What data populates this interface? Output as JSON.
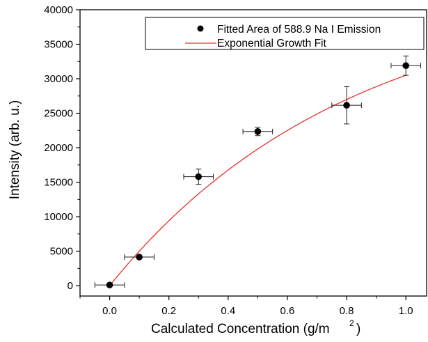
{
  "chart_data": {
    "type": "scatter",
    "title": "",
    "xlabel": "Calculated Concentration (g/m",
    "xlabel_sup": "2",
    "xlabel_end": ")",
    "ylabel": "Intensity (arb. u.)",
    "xlim": [
      -0.1,
      1.07
    ],
    "ylim": [
      -1500,
      40000
    ],
    "x_ticks": [
      0.0,
      0.2,
      0.4,
      0.6,
      0.8,
      1.0
    ],
    "x_tick_labels": [
      "0.0",
      "0.2",
      "0.4",
      "0.6",
      "0.8",
      "1.0"
    ],
    "y_ticks": [
      0,
      5000,
      10000,
      15000,
      20000,
      25000,
      30000,
      35000,
      40000
    ],
    "y_tick_labels": [
      "0",
      "5000",
      "10000",
      "15000",
      "20000",
      "25000",
      "30000",
      "35000",
      "40000"
    ],
    "grid": false,
    "legend_position": "top-right",
    "series": [
      {
        "name": "Fitted Area of 588.9 Na I Emission",
        "kind": "scatter",
        "color": "#000000",
        "points": [
          {
            "x": 0.0,
            "y": 100,
            "xerr": 0.05,
            "yerr": 0
          },
          {
            "x": 0.1,
            "y": 4150,
            "xerr": 0.05,
            "yerr": 0
          },
          {
            "x": 0.3,
            "y": 15800,
            "xerr": 0.05,
            "yerr": 1100
          },
          {
            "x": 0.5,
            "y": 22350,
            "xerr": 0.05,
            "yerr": 600
          },
          {
            "x": 0.8,
            "y": 26150,
            "xerr": 0.05,
            "yerr": 2700
          },
          {
            "x": 1.0,
            "y": 31900,
            "xerr": 0.05,
            "yerr": 1400
          }
        ]
      },
      {
        "name": "Exponential Growth Fit",
        "kind": "line",
        "color": "#e8302a",
        "fit": {
          "A": 43000,
          "k": 1.235,
          "x_start": 0.0,
          "x_end": 1.0
        }
      }
    ]
  }
}
